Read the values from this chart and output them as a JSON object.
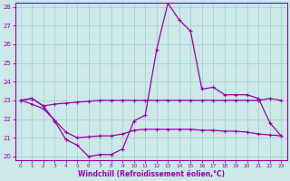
{
  "xlabel": "Windchill (Refroidissement éolien,°C)",
  "x": [
    0,
    1,
    2,
    3,
    4,
    5,
    6,
    7,
    8,
    9,
    10,
    11,
    12,
    13,
    14,
    15,
    16,
    17,
    18,
    19,
    20,
    21,
    22,
    23
  ],
  "line1": [
    23.0,
    23.1,
    22.7,
    22.8,
    22.85,
    22.9,
    22.95,
    23.0,
    23.0,
    23.0,
    23.0,
    23.0,
    23.0,
    23.0,
    23.0,
    23.0,
    23.0,
    23.0,
    23.0,
    23.0,
    23.0,
    23.0,
    23.1,
    23.0
  ],
  "line2": [
    23.0,
    23.1,
    22.7,
    21.9,
    20.9,
    20.6,
    20.0,
    20.1,
    20.1,
    20.4,
    21.9,
    22.2,
    25.7,
    28.2,
    27.3,
    26.7,
    23.6,
    23.7,
    23.3,
    23.3,
    23.3,
    23.1,
    21.8,
    21.1
  ],
  "line3": [
    23.0,
    22.8,
    22.55,
    21.95,
    21.3,
    21.0,
    21.05,
    21.1,
    21.1,
    21.2,
    21.4,
    21.45,
    21.45,
    21.45,
    21.45,
    21.45,
    21.4,
    21.4,
    21.35,
    21.35,
    21.3,
    21.2,
    21.15,
    21.1
  ],
  "line_color": "#9900aa",
  "bg_color": "#cce8e8",
  "grid_color": "#aacece",
  "ylim": [
    19.8,
    28.2
  ],
  "xlim": [
    -0.5,
    23.5
  ],
  "yticks": [
    20,
    21,
    22,
    23,
    24,
    25,
    26,
    27,
    28
  ],
  "xticks": [
    0,
    1,
    2,
    3,
    4,
    5,
    6,
    7,
    8,
    9,
    10,
    11,
    12,
    13,
    14,
    15,
    16,
    17,
    18,
    19,
    20,
    21,
    22,
    23
  ]
}
